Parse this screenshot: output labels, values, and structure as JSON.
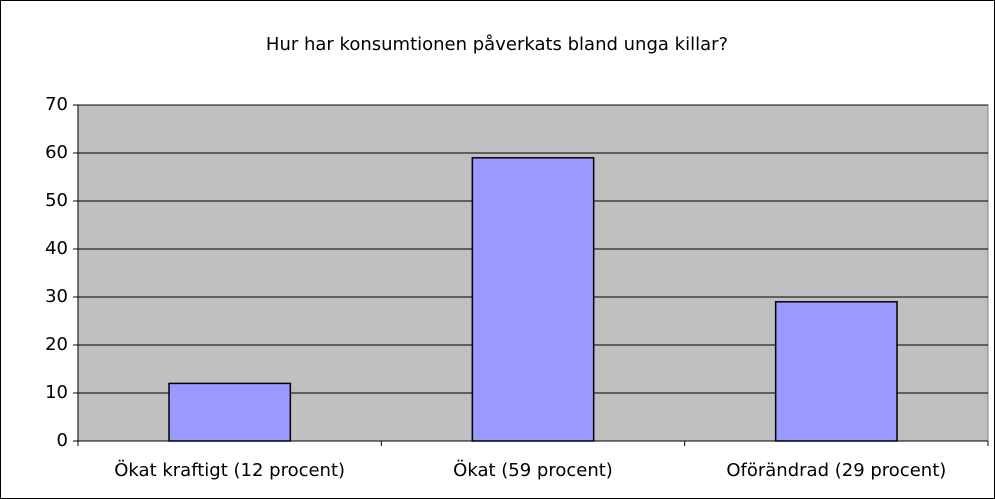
{
  "chart_data": {
    "type": "bar",
    "title": "Hur har konsumtionen påverkats bland unga killar?",
    "categories": [
      "Ökat kraftigt (12 procent)",
      "Ökat (59 procent)",
      "Oförändrad (29 procent)"
    ],
    "values": [
      12,
      59,
      29
    ],
    "color": "#9999ff",
    "ylim": [
      0,
      70
    ],
    "yticks": [
      0,
      10,
      20,
      30,
      40,
      50,
      60,
      70
    ],
    "grid": true
  }
}
